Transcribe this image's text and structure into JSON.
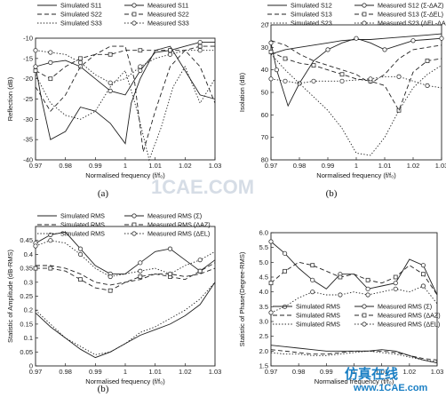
{
  "chart_data": [
    {
      "type": "line",
      "caption": "(a)",
      "xlabel": "Normalised frequency (f/f₀)",
      "ylabel": "Reflection (dB)",
      "xlim": [
        0.97,
        1.03
      ],
      "ylim": [
        -40,
        -10
      ],
      "y_invert": false,
      "xticks": [
        0.97,
        0.98,
        0.99,
        1,
        1.01,
        1.02,
        1.03
      ],
      "yticks": [
        -40,
        -35,
        -30,
        -25,
        -20,
        -15,
        -10
      ],
      "legend_cols": 2,
      "legend_position": "top",
      "series": [
        {
          "name": "Simulated S11",
          "dash": "solid",
          "marker": "",
          "x": [
            0.97,
            0.972,
            0.975,
            0.98,
            0.985,
            0.99,
            0.995,
            1,
            1.002,
            1.005,
            1.01,
            1.015,
            1.02,
            1.025,
            1.03
          ],
          "y": [
            -17,
            -25,
            -35,
            -33,
            -27,
            -28,
            -31,
            -36,
            -26,
            -20,
            -13,
            -12,
            -18,
            -24,
            -25
          ]
        },
        {
          "name": "Measured S11",
          "dash": "solid",
          "marker": "circle",
          "x": [
            0.97,
            0.975,
            0.98,
            0.985,
            0.99,
            0.995,
            1,
            1.005,
            1.01,
            1.015,
            1.02,
            1.025,
            1.03
          ],
          "y": [
            -17,
            -16,
            -15.5,
            -17,
            -20,
            -23,
            -24,
            -18,
            -13.5,
            -13,
            -12,
            -11,
            -11
          ]
        },
        {
          "name": "Simulated S22",
          "dash": "dash",
          "marker": "",
          "x": [
            0.97,
            0.975,
            0.98,
            0.985,
            0.99,
            0.995,
            1,
            1.003,
            1.006,
            1.01,
            1.015,
            1.02,
            1.025,
            1.03
          ],
          "y": [
            -22,
            -28,
            -24,
            -17,
            -14,
            -12,
            -12,
            -20,
            -38,
            -28,
            -17,
            -13,
            -17,
            -26
          ]
        },
        {
          "name": "Measured S22",
          "dash": "dash",
          "marker": "square",
          "x": [
            0.97,
            0.975,
            0.98,
            0.985,
            0.99,
            0.995,
            1,
            1.005,
            1.01,
            1.015,
            1.02,
            1.025,
            1.03
          ],
          "y": [
            -18,
            -20,
            -17,
            -15,
            -14,
            -14,
            -13,
            -13,
            -13,
            -13,
            -13,
            -12,
            -12
          ]
        },
        {
          "name": "Simulated S33",
          "dash": "dot",
          "marker": "",
          "x": [
            0.97,
            0.975,
            0.98,
            0.985,
            0.99,
            0.995,
            1,
            1.004,
            1.008,
            1.012,
            1.016,
            1.02,
            1.025,
            1.03
          ],
          "y": [
            -19,
            -26,
            -29,
            -30,
            -28,
            -22,
            -18,
            -28,
            -40,
            -32,
            -22,
            -17,
            -26,
            -20
          ]
        },
        {
          "name": "Measured S33",
          "dash": "dot",
          "marker": "circle",
          "x": [
            0.97,
            0.975,
            0.98,
            0.985,
            0.99,
            0.995,
            1,
            1.005,
            1.01,
            1.015,
            1.02,
            1.025,
            1.03
          ],
          "y": [
            -13,
            -13.5,
            -14,
            -16,
            -19,
            -21,
            -20,
            -17,
            -15,
            -14,
            -13,
            -13,
            -13
          ]
        }
      ]
    },
    {
      "type": "line",
      "caption": "(b)",
      "xlabel": "Normalised frequency (f/f₀)",
      "ylabel": "Isolation (dB)",
      "xlim": [
        0.97,
        1.03
      ],
      "ylim": [
        20,
        80
      ],
      "y_invert": true,
      "xticks": [
        0.97,
        0.98,
        0.99,
        1,
        1.01,
        1.02,
        1.03
      ],
      "yticks": [
        20,
        30,
        40,
        50,
        60,
        70,
        80
      ],
      "legend_cols": 2,
      "legend_position": "top",
      "series": [
        {
          "name": "Simulated S12",
          "dash": "solid",
          "marker": "",
          "x": [
            0.97,
            0.975,
            0.98,
            0.985,
            0.99,
            0.995,
            1,
            1.005,
            1.01,
            1.015,
            1.02,
            1.025,
            1.03
          ],
          "y": [
            33,
            31,
            30,
            29,
            28,
            27,
            26.5,
            26.5,
            26,
            25.5,
            25,
            24.5,
            24
          ]
        },
        {
          "name": "Measured S12 (Σ-ΔAZ)",
          "dash": "solid",
          "marker": "circle",
          "x": [
            0.97,
            0.972,
            0.976,
            0.98,
            0.985,
            0.99,
            0.995,
            1,
            1.005,
            1.01,
            1.015,
            1.02,
            1.025,
            1.03
          ],
          "y": [
            28,
            40,
            56,
            46,
            36,
            31,
            28,
            26,
            28,
            31,
            29,
            27,
            26.5,
            26
          ]
        },
        {
          "name": "Simulated S13",
          "dash": "dash",
          "marker": "",
          "x": [
            0.97,
            0.975,
            0.98,
            0.985,
            0.99,
            0.995,
            1,
            1.005,
            1.01,
            1.015,
            1.02,
            1.025,
            1.03
          ],
          "y": [
            27,
            29,
            33,
            36,
            38,
            40,
            42,
            46,
            42,
            35,
            31,
            30,
            29
          ]
        },
        {
          "name": "Measured S13 (Σ-ΔEL)",
          "dash": "dash",
          "marker": "square",
          "x": [
            0.97,
            0.975,
            0.98,
            0.985,
            0.99,
            0.995,
            1,
            1.005,
            1.01,
            1.015,
            1.02,
            1.025,
            1.03
          ],
          "y": [
            32,
            35,
            37,
            38,
            40,
            42,
            44,
            45,
            47,
            58,
            41,
            36,
            35
          ]
        },
        {
          "name": "Simulated S23",
          "dash": "dot",
          "marker": "",
          "x": [
            0.97,
            0.975,
            0.98,
            0.985,
            0.99,
            0.995,
            1,
            1.005,
            1.01,
            1.015,
            1.02,
            1.025,
            1.03
          ],
          "y": [
            33,
            40,
            46,
            52,
            58,
            66,
            77,
            78,
            70,
            58,
            48,
            42,
            38
          ]
        },
        {
          "name": "Measured S23 (ΔEL-ΔAZ)",
          "dash": "dot",
          "marker": "circle",
          "x": [
            0.97,
            0.975,
            0.98,
            0.985,
            0.99,
            0.995,
            1,
            1.005,
            1.01,
            1.015,
            1.02,
            1.025,
            1.03
          ],
          "y": [
            44,
            45,
            46,
            45,
            45,
            45,
            44.5,
            44,
            43,
            43,
            45,
            47,
            48
          ]
        }
      ]
    },
    {
      "type": "line",
      "caption": "(b)",
      "xlabel": "Normalised frequency (f/f₀)",
      "ylabel": "Statistic of Amplitude (dB-RMS)",
      "xlim": [
        0.97,
        1.03
      ],
      "ylim": [
        0,
        0.5
      ],
      "y_invert": false,
      "xticks": [
        0.97,
        0.98,
        0.99,
        1,
        1.01,
        1.02,
        1.03
      ],
      "yticks": [
        0,
        0.05,
        0.1,
        0.15,
        0.2,
        0.25,
        0.3,
        0.35,
        0.4,
        0.45
      ],
      "legend_cols": 2,
      "legend_position": "top",
      "series": [
        {
          "name": "Simulated RMS",
          "dash": "solid",
          "marker": "",
          "x": [
            0.97,
            0.975,
            0.98,
            0.985,
            0.99,
            0.995,
            1,
            1.005,
            1.01,
            1.015,
            1.02,
            1.025,
            1.03
          ],
          "y": [
            0.19,
            0.14,
            0.1,
            0.06,
            0.03,
            0.05,
            0.08,
            0.11,
            0.13,
            0.15,
            0.18,
            0.22,
            0.3
          ]
        },
        {
          "name": "Measured RMS (Σ)",
          "dash": "solid",
          "marker": "circle",
          "x": [
            0.97,
            0.975,
            0.98,
            0.985,
            0.99,
            0.995,
            1,
            1.005,
            1.01,
            1.015,
            1.02,
            1.025,
            1.03
          ],
          "y": [
            0.44,
            0.47,
            0.48,
            0.42,
            0.36,
            0.33,
            0.33,
            0.37,
            0.41,
            0.42,
            0.38,
            0.34,
            0.38
          ]
        },
        {
          "name": "Simulated RMS",
          "dash": "dash",
          "marker": "",
          "x": [
            0.97,
            0.975,
            0.98,
            0.985,
            0.99,
            0.995,
            1,
            1.005,
            1.01,
            1.015,
            1.02,
            1.025,
            1.03
          ],
          "y": [
            0.36,
            0.36,
            0.35,
            0.33,
            0.3,
            0.29,
            0.3,
            0.31,
            0.33,
            0.33,
            0.32,
            0.33,
            0.35
          ]
        },
        {
          "name": "Measured RMS (ΔAZ)",
          "dash": "dash",
          "marker": "square",
          "x": [
            0.97,
            0.975,
            0.98,
            0.985,
            0.99,
            0.995,
            1,
            1.005,
            1.01,
            1.015,
            1.02,
            1.025,
            1.03
          ],
          "y": [
            0.35,
            0.35,
            0.34,
            0.31,
            0.28,
            0.27,
            0.3,
            0.32,
            0.33,
            0.32,
            0.31,
            0.34,
            0.37
          ]
        },
        {
          "name": "Simulated RMS",
          "dash": "dot",
          "marker": "",
          "x": [
            0.97,
            0.975,
            0.98,
            0.985,
            0.99,
            0.995,
            1,
            1.005,
            1.01,
            1.015,
            1.02,
            1.025,
            1.03
          ],
          "y": [
            0.2,
            0.15,
            0.1,
            0.07,
            0.04,
            0.05,
            0.08,
            0.12,
            0.14,
            0.17,
            0.2,
            0.24,
            0.3
          ]
        },
        {
          "name": "Measured RMS (ΔEL)",
          "dash": "dot",
          "marker": "circle",
          "x": [
            0.97,
            0.975,
            0.98,
            0.985,
            0.99,
            0.995,
            1,
            1.005,
            1.01,
            1.015,
            1.02,
            1.025,
            1.03
          ],
          "y": [
            0.43,
            0.45,
            0.44,
            0.4,
            0.35,
            0.32,
            0.33,
            0.34,
            0.35,
            0.33,
            0.36,
            0.38,
            0.41
          ]
        }
      ]
    },
    {
      "type": "line",
      "caption": "",
      "xlabel": "Normalised frequency (f/f₀)",
      "ylabel": "Statistic of Phase(Degree-RMS)",
      "xlim": [
        0.97,
        1.03
      ],
      "ylim": [
        1.5,
        6.0
      ],
      "y_invert": false,
      "xticks": [
        0.97,
        0.98,
        0.99,
        1,
        1.01,
        1.02,
        1.03
      ],
      "yticks": [
        1.5,
        2.0,
        2.5,
        3.0,
        3.5,
        4.0,
        4.5,
        5.0,
        5.5,
        6.0
      ],
      "legend_cols": 2,
      "legend_position": "middle",
      "series": [
        {
          "name": "Simulated RMS",
          "dash": "solid",
          "marker": "",
          "x": [
            0.97,
            0.975,
            0.98,
            0.985,
            0.99,
            0.995,
            1,
            1.005,
            1.01,
            1.015,
            1.02,
            1.025,
            1.03
          ],
          "y": [
            2.2,
            2.15,
            2.1,
            2.05,
            2.0,
            2.0,
            2.0,
            2.0,
            2.05,
            2.0,
            1.85,
            1.7,
            1.6
          ]
        },
        {
          "name": "Measured RMS (Σ)",
          "dash": "solid",
          "marker": "circle",
          "x": [
            0.97,
            0.975,
            0.98,
            0.985,
            0.99,
            0.995,
            1,
            1.005,
            1.01,
            1.015,
            1.02,
            1.025,
            1.03
          ],
          "y": [
            5.7,
            5.3,
            4.8,
            4.4,
            4.1,
            4.6,
            4.6,
            4.1,
            4.2,
            4.3,
            5.1,
            4.9,
            3.9
          ]
        },
        {
          "name": "Simulated RMS",
          "dash": "dash",
          "marker": "",
          "x": [
            0.97,
            0.975,
            0.98,
            0.985,
            0.99,
            0.995,
            1,
            1.005,
            1.01,
            1.015,
            1.02,
            1.025,
            1.03
          ],
          "y": [
            2.05,
            2.0,
            1.95,
            1.9,
            1.9,
            1.95,
            2.0,
            2.0,
            2.0,
            1.95,
            1.85,
            1.75,
            1.7
          ]
        },
        {
          "name": "Measured RMS (ΔAZ)",
          "dash": "dash",
          "marker": "square",
          "x": [
            0.97,
            0.975,
            0.98,
            0.985,
            0.99,
            0.995,
            1,
            1.005,
            1.01,
            1.015,
            1.02,
            1.025,
            1.03
          ],
          "y": [
            4.3,
            4.7,
            5.0,
            4.9,
            4.7,
            4.5,
            4.6,
            4.4,
            4.3,
            4.5,
            4.9,
            4.6,
            3.9
          ]
        },
        {
          "name": "Simulated RMS",
          "dash": "dot",
          "marker": "",
          "x": [
            0.97,
            0.975,
            0.98,
            0.985,
            0.99,
            0.995,
            1,
            1.005,
            1.01,
            1.015,
            1.02,
            1.025,
            1.03
          ],
          "y": [
            1.95,
            1.9,
            1.9,
            1.85,
            1.85,
            1.9,
            1.95,
            2.0,
            1.95,
            1.9,
            1.8,
            1.7,
            1.65
          ]
        },
        {
          "name": "Measured RMS (ΔEL)",
          "dash": "dot",
          "marker": "circle",
          "x": [
            0.97,
            0.975,
            0.98,
            0.985,
            0.99,
            0.995,
            1,
            1.005,
            1.01,
            1.015,
            1.02,
            1.025,
            1.03
          ],
          "y": [
            3.3,
            3.5,
            3.8,
            4.0,
            3.9,
            3.9,
            4.0,
            3.9,
            4.0,
            4.1,
            4.0,
            4.2,
            3.6
          ]
        }
      ]
    }
  ],
  "watermark": {
    "text": "1CAE.COM"
  },
  "branding": {
    "chinese": "仿真在线",
    "url": "www.1CAE.com",
    "color": "#1a7fc4"
  }
}
